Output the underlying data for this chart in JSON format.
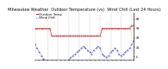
{
  "title": "Milwaukee Weather  Outdoor Temperature (vs)  Wind Chill (Last 24 Hours)",
  "temp_color": "#dd0000",
  "windchill_color": "#0000cc",
  "background_color": "#ffffff",
  "ylim": [
    2,
    52
  ],
  "yticks": [
    5,
    15,
    25,
    35,
    45
  ],
  "ytick_labels": [
    "5",
    "15",
    "25",
    "35",
    "45"
  ],
  "num_points": 48,
  "temp_values": [
    35,
    35,
    35,
    35,
    35,
    35,
    35,
    35,
    27,
    27,
    27,
    27,
    27,
    27,
    27,
    27,
    27,
    27,
    27,
    27,
    27,
    27,
    27,
    27,
    27,
    27,
    27,
    27,
    27,
    27,
    27,
    27,
    35,
    35,
    35,
    35,
    35,
    35,
    35,
    35,
    35,
    35,
    35,
    35,
    35,
    35,
    38,
    38
  ],
  "windchill_values": [
    18,
    14,
    10,
    6,
    3,
    1,
    0,
    -1,
    -2,
    -3,
    -3,
    -3,
    -3,
    -2,
    -1,
    0,
    2,
    4,
    6,
    8,
    10,
    12,
    14,
    16,
    14,
    12,
    10,
    8,
    12,
    14,
    16,
    14,
    8,
    6,
    4,
    6,
    10,
    12,
    14,
    12,
    8,
    6,
    8,
    10,
    12,
    14,
    18,
    22
  ],
  "grid_positions": [
    0,
    6,
    11,
    16,
    21,
    26,
    31,
    36,
    41,
    46
  ],
  "grid_color": "#aaaaaa",
  "title_fontsize": 3.8,
  "tick_fontsize": 3.0,
  "legend_fontsize": 3.0,
  "line_width": 0.5,
  "marker_size": 0.6
}
